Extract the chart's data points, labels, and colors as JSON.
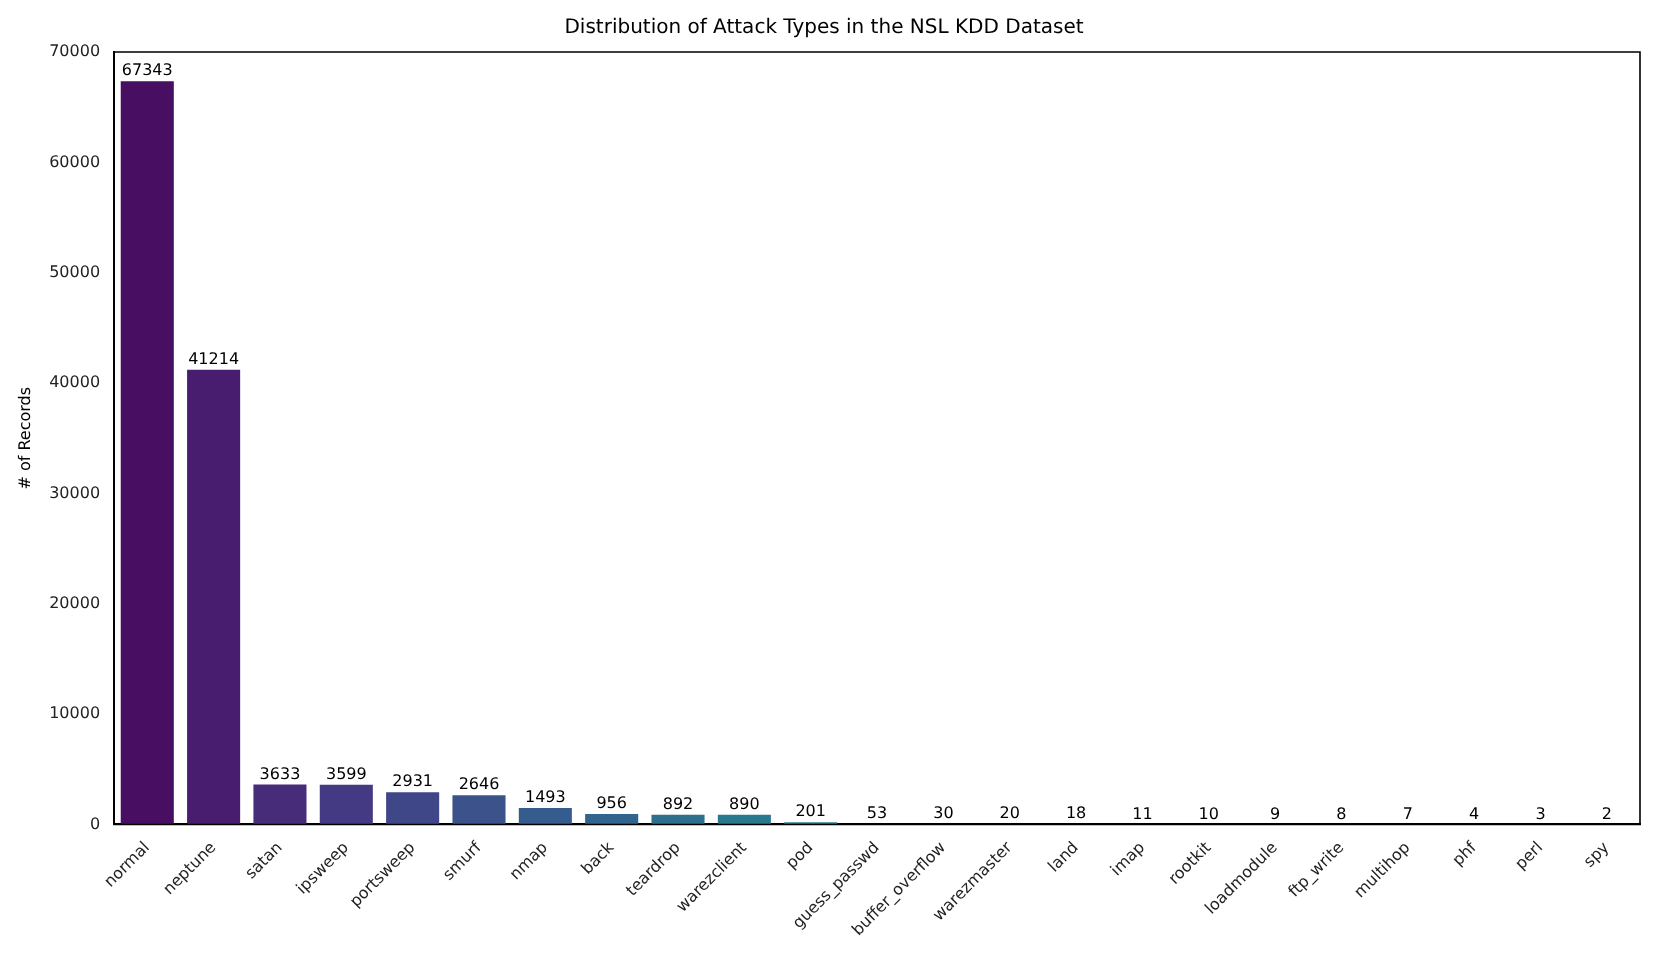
{
  "chart_data": {
    "type": "bar",
    "title": "Distribution of Attack Types in the NSL KDD Dataset",
    "ylabel": "# of Records",
    "categories": [
      "normal",
      "neptune",
      "satan",
      "ipsweep",
      "portsweep",
      "smurf",
      "nmap",
      "back",
      "teardrop",
      "warezclient",
      "pod",
      "guess_passwd",
      "buffer_overflow",
      "warezmaster",
      "land",
      "imap",
      "rootkit",
      "loadmodule",
      "ftp_write",
      "multihop",
      "phf",
      "perl",
      "spy"
    ],
    "values": [
      67343,
      41214,
      3633,
      3599,
      2931,
      2646,
      1493,
      956,
      892,
      890,
      201,
      53,
      30,
      20,
      18,
      11,
      10,
      9,
      8,
      7,
      4,
      3,
      2
    ],
    "colors": [
      "#470e61",
      "#481d6f",
      "#472c7a",
      "#433a83",
      "#3f4788",
      "#3b528b",
      "#365c8d",
      "#32658e",
      "#2e6f8e",
      "#2a788e",
      "#26818e",
      "#1f9a8a",
      "#22a385",
      "#2bb07f",
      "#3bbb75",
      "#4ec36b",
      "#5ec962",
      "#75d054",
      "#8fd744",
      "#addc30",
      "#c8e020",
      "#d8e219",
      "#e2e418"
    ],
    "ylim": [
      0,
      70000
    ],
    "yticks": [
      0,
      10000,
      20000,
      30000,
      40000,
      50000,
      60000,
      70000
    ],
    "grid": false,
    "legend": false,
    "data_labels": true
  }
}
